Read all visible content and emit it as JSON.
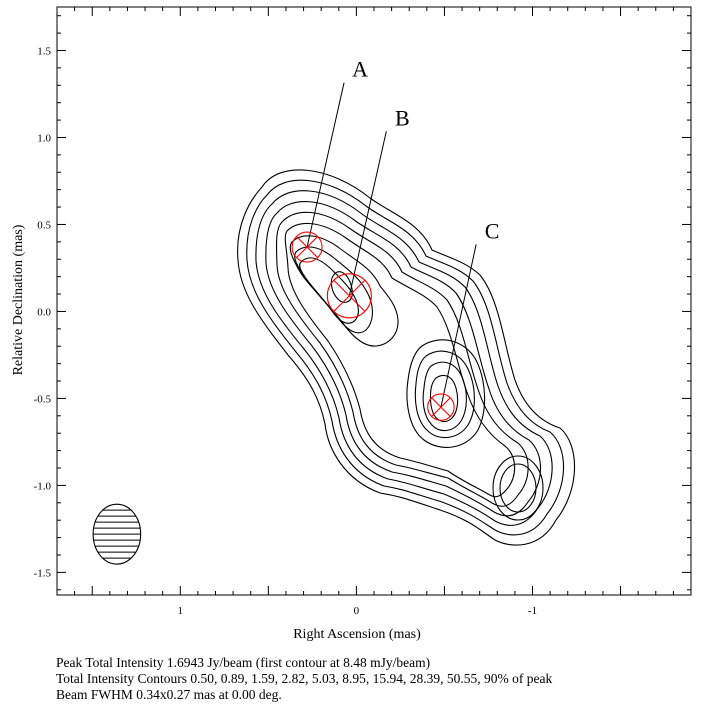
{
  "chart_data": {
    "type": "contour",
    "xlabel": "Right Ascension (mas)",
    "ylabel": "Relative Declination (mas)",
    "xlim": [
      1.7,
      -1.9
    ],
    "ylim": [
      -1.63,
      1.75
    ],
    "x_axis_reversed": true,
    "x_ticks": [
      1,
      0,
      -1
    ],
    "x_tick_labels": [
      "1",
      "0",
      "-1"
    ],
    "y_ticks": [
      1.5,
      1.0,
      0.5,
      0.0,
      -0.5,
      -1.0,
      -1.5
    ],
    "y_tick_labels": [
      "1.5",
      "1.0",
      "0.5",
      "0.0",
      "-0.5",
      "-1.0",
      "-1.5"
    ],
    "grid": false,
    "line_color": "#000000",
    "marker_color": "#ff0000",
    "contours_pct_of_peak": [
      0.5,
      0.89,
      1.59,
      2.82,
      5.03,
      8.95,
      15.94,
      28.39,
      50.55,
      90
    ],
    "components": [
      {
        "label": "A",
        "x": 0.28,
        "y": 0.37,
        "size": 0.17,
        "label_x": 0.07,
        "label_y": 1.35
      },
      {
        "label": "B",
        "x": 0.04,
        "y": 0.09,
        "size": 0.25,
        "label_x": -0.17,
        "label_y": 1.07
      },
      {
        "label": "C",
        "x": -0.48,
        "y": -0.55,
        "size": 0.15,
        "label_x": -0.68,
        "label_y": 0.42
      }
    ],
    "beam": {
      "major_mas": 0.34,
      "minor_mas": 0.27,
      "pa_deg": 0.0,
      "x": 1.36,
      "y": -1.28
    }
  },
  "captions": {
    "line1": "Peak Total Intensity 1.6943 Jy/beam (first contour at 8.48 mJy/beam)",
    "line2": "Total Intensity Contours 0.50, 0.89, 1.59, 2.82, 5.03, 8.95, 15.94, 28.39, 50.55, 90% of peak",
    "line3": "Beam FWHM 0.34x0.27 mas at 0.00 deg."
  }
}
